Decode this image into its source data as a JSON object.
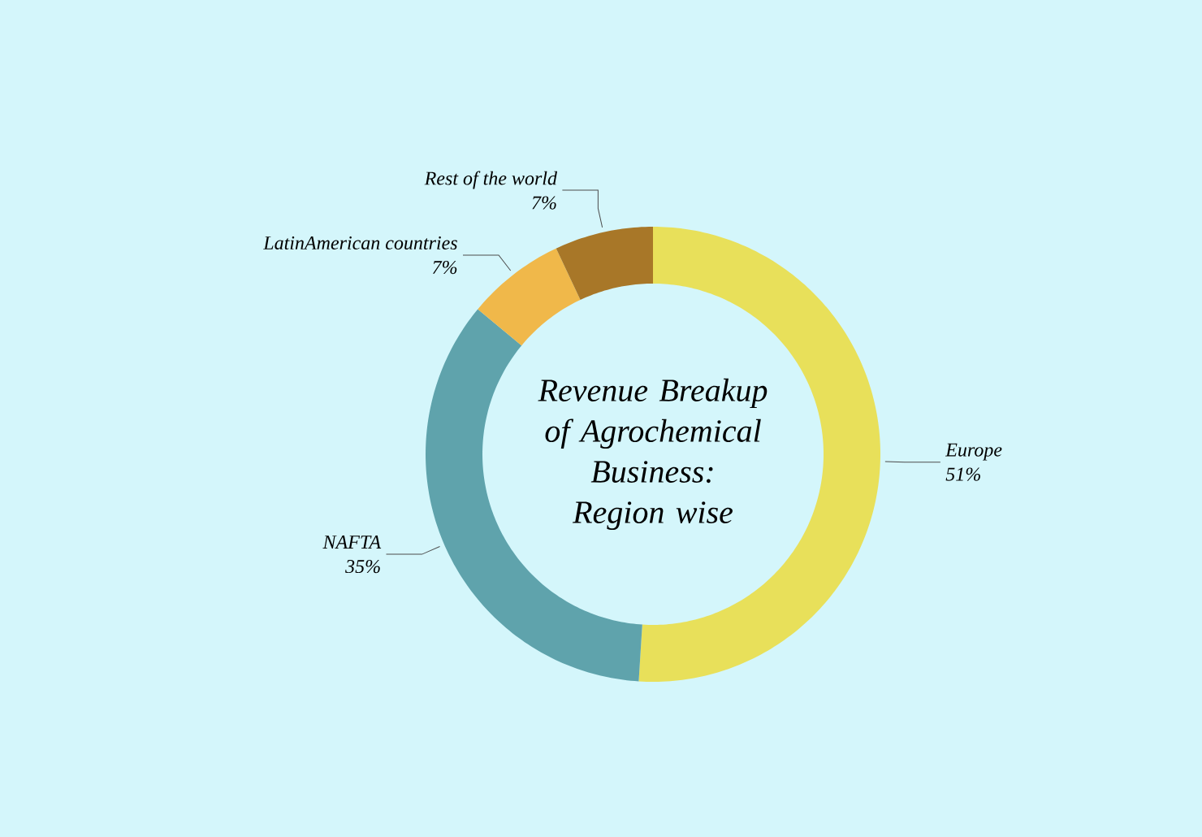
{
  "chart_data": {
    "type": "donut",
    "title": "Revenue Breakup of Agrochemical Business: Region wise",
    "categories": [
      "Europe",
      "NAFTA",
      "LatinAmerican countries",
      "Rest of the world"
    ],
    "values": [
      51,
      35,
      7,
      7
    ],
    "colors": [
      "#e8e05a",
      "#5fa3ac",
      "#f0b84a",
      "#a87728"
    ],
    "value_labels": [
      "51%",
      "35%",
      "7%",
      "7%"
    ]
  }
}
